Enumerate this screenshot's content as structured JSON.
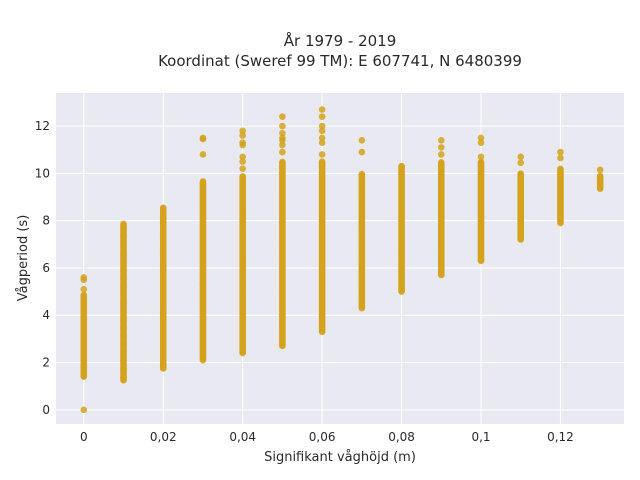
{
  "chart_data": {
    "type": "scatter",
    "title": "År 1979 - 2019",
    "subtitle": "Koordinat (Sweref 99 TM): E 607741, N 6480399",
    "xlabel": "Signifikant våghöjd (m)",
    "ylabel": "Vågperiod (s)",
    "xlim": [
      -0.007,
      0.136
    ],
    "ylim": [
      -0.6,
      13.4
    ],
    "x_ticks": [
      0,
      0.02,
      0.04,
      0.06,
      0.08,
      0.1,
      0.12
    ],
    "x_tick_labels": [
      "0",
      "0,02",
      "0,04",
      "0,06",
      "0,08",
      "0,1",
      "0,12"
    ],
    "y_ticks": [
      0,
      2,
      4,
      6,
      8,
      10,
      12
    ],
    "y_tick_labels": [
      "0",
      "2",
      "4",
      "6",
      "8",
      "10",
      "12"
    ],
    "grid": true,
    "marker_color": "#D4A21C",
    "background_color": "#E9E9F1",
    "columns": [
      {
        "x": 0.0,
        "y_min": 1.4,
        "y_max": 4.9,
        "outliers": [
          0.0,
          5.1,
          5.5,
          5.6
        ]
      },
      {
        "x": 0.01,
        "y_min": 1.25,
        "y_max": 7.9,
        "outliers": []
      },
      {
        "x": 0.02,
        "y_min": 1.75,
        "y_max": 8.55,
        "outliers": []
      },
      {
        "x": 0.03,
        "y_min": 2.1,
        "y_max": 9.7,
        "outliers": [
          10.8,
          11.45,
          11.5
        ]
      },
      {
        "x": 0.04,
        "y_min": 2.4,
        "y_max": 9.9,
        "outliers": [
          10.2,
          10.5,
          10.7,
          11.2,
          11.3,
          11.6,
          11.8
        ]
      },
      {
        "x": 0.05,
        "y_min": 2.7,
        "y_max": 10.5,
        "outliers": [
          10.9,
          11.2,
          11.4,
          11.5,
          11.7,
          12.0,
          12.4
        ]
      },
      {
        "x": 0.06,
        "y_min": 3.3,
        "y_max": 10.5,
        "outliers": [
          10.8,
          11.3,
          11.5,
          11.8,
          12.0,
          12.4,
          12.7
        ]
      },
      {
        "x": 0.07,
        "y_min": 4.3,
        "y_max": 10.0,
        "outliers": [
          10.9,
          11.4
        ]
      },
      {
        "x": 0.08,
        "y_min": 5.0,
        "y_max": 10.35,
        "outliers": []
      },
      {
        "x": 0.09,
        "y_min": 5.7,
        "y_max": 10.5,
        "outliers": [
          10.8,
          11.1,
          11.4
        ]
      },
      {
        "x": 0.1,
        "y_min": 6.3,
        "y_max": 10.5,
        "outliers": [
          10.7,
          11.3,
          11.5
        ]
      },
      {
        "x": 0.11,
        "y_min": 7.2,
        "y_max": 10.0,
        "outliers": [
          10.45,
          10.7
        ]
      },
      {
        "x": 0.12,
        "y_min": 7.9,
        "y_max": 10.2,
        "outliers": [
          10.65,
          10.9
        ]
      },
      {
        "x": 0.13,
        "y_min": 9.35,
        "y_max": 9.9,
        "outliers": [
          10.15
        ]
      }
    ]
  }
}
